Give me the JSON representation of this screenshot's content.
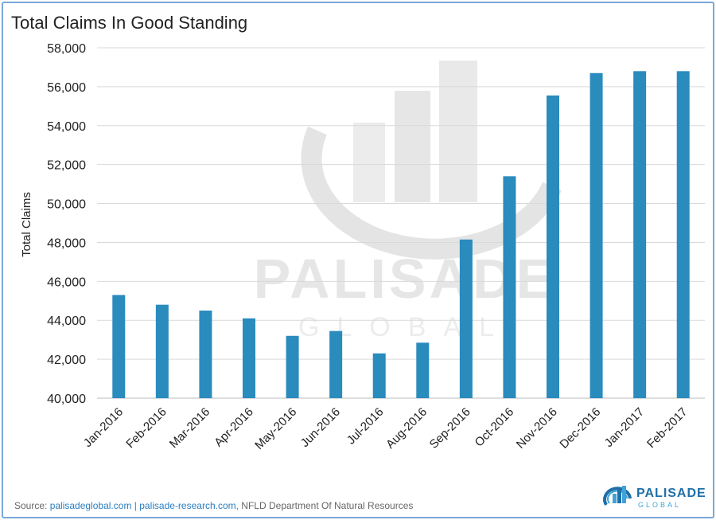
{
  "title": "Total Claims In Good Standing",
  "source": {
    "prefix": "Source: ",
    "link1": "palisadeglobal.com",
    "separator": " | ",
    "link2": "palisade-research.com,",
    "rest": " NFLD Department Of Natural Resources"
  },
  "brand": {
    "name": "PALISADE",
    "tagline": "GLOBAL",
    "color": "#1f6fa8"
  },
  "watermark": {
    "name": "PALISADE",
    "tagline": "GLOBAL"
  },
  "chart_data": {
    "type": "bar",
    "title": "Total Claims In Good Standing",
    "xlabel": "",
    "ylabel": "Total Claims",
    "ylim": [
      40000,
      58000
    ],
    "yticks": [
      40000,
      42000,
      44000,
      46000,
      48000,
      50000,
      52000,
      54000,
      56000,
      58000
    ],
    "ytick_labels": [
      "40,000",
      "42,000",
      "44,000",
      "46,000",
      "48,000",
      "50,000",
      "52,000",
      "54,000",
      "56,000",
      "58,000"
    ],
    "grid": true,
    "bar_color": "#2a8bbd",
    "categories": [
      "Jan-2016",
      "Feb-2016",
      "Mar-2016",
      "Apr-2016",
      "May-2016",
      "Jun-2016",
      "Jul-2016",
      "Aug-2016",
      "Sep-2016",
      "Oct-2016",
      "Nov-2016",
      "Dec-2016",
      "Jan-2017",
      "Feb-2017"
    ],
    "values": [
      45300,
      44800,
      44500,
      44100,
      43200,
      43450,
      42300,
      42850,
      48150,
      51400,
      55550,
      56700,
      56800,
      56800
    ]
  }
}
